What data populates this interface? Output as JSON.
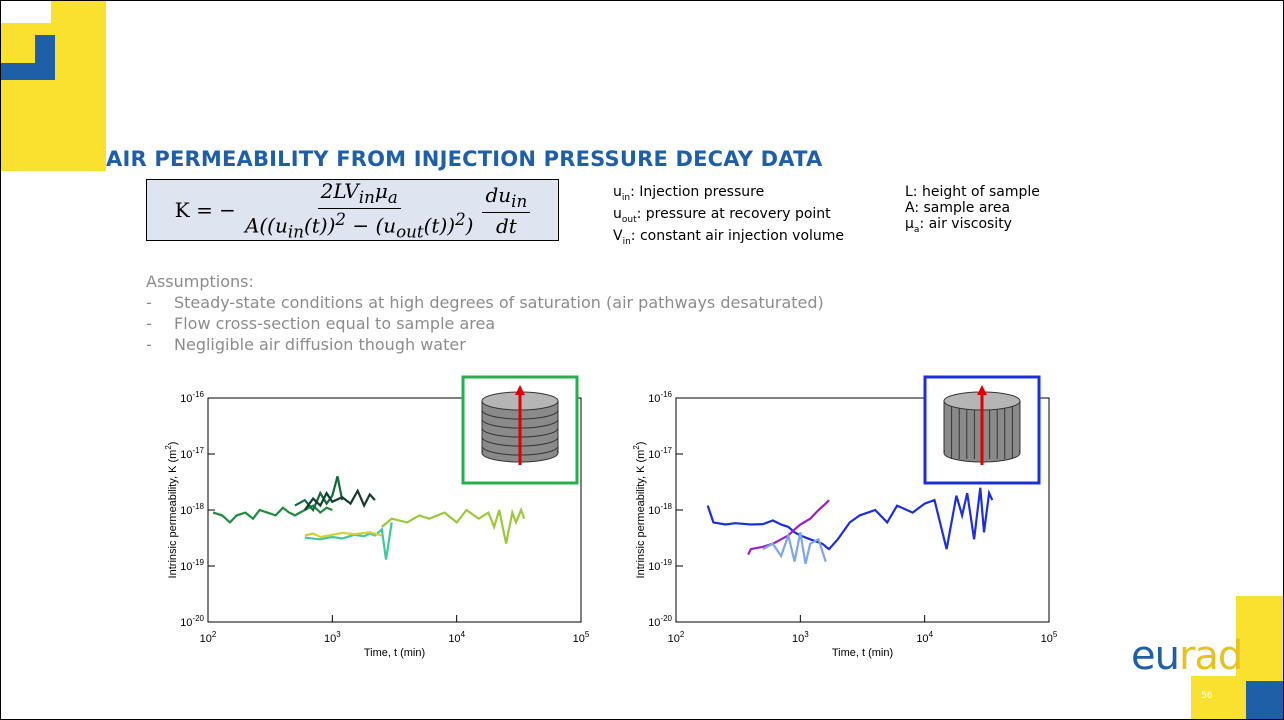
{
  "header": {
    "title": "AIR PERMEABILITY FROM INJECTION PRESSURE DECAY DATA"
  },
  "formula": {
    "lhs": "K = −",
    "numerator": [
      {
        "t": "2LV",
        "sub": "in"
      },
      {
        "t": "μ",
        "sub": "a"
      }
    ],
    "denominator": [
      {
        "t": "A((u",
        "sub": "in"
      },
      {
        "t": "(t))",
        "sup": "2"
      },
      {
        "t": " − (u",
        "sub": "out"
      },
      {
        "t": "(t))",
        "sup": "2"
      },
      {
        "t": ")"
      }
    ],
    "d_numerator": [
      {
        "t": "du",
        "sub": "in"
      }
    ],
    "d_denominator": [
      {
        "t": "dt"
      }
    ]
  },
  "definitions": [
    [
      [
        {
          "t": "u",
          "sub": "in"
        },
        {
          "t": ": Injection pressure"
        }
      ],
      [
        {
          "t": "u",
          "sub": "out"
        },
        {
          "t": ": pressure at recovery point"
        }
      ],
      [
        {
          "t": "V",
          "sub": "in"
        },
        {
          "t": ": constant air injection volume"
        }
      ]
    ],
    [
      [
        {
          "t": "L: height of sample"
        }
      ],
      [
        {
          "t": "A: sample area"
        }
      ],
      [
        {
          "t": "μ",
          "sub": "a"
        },
        {
          "t": ": air viscosity"
        }
      ]
    ]
  ],
  "assumptions": {
    "title": "Assumptions:",
    "bullet": "-",
    "items": [
      "Steady-state conditions at high degrees of saturation (air pathways desaturated)",
      "Flow cross-section equal to sample area",
      "Negligible air diffusion though water"
    ]
  },
  "chart_data": [
    {
      "type": "line",
      "xscale": "log",
      "yscale": "log",
      "xlabel": "Time, t (min)",
      "ylabel": {
        "text": "Intrinsic permeability, K (m",
        "sup": "2",
        "end": ")"
      },
      "inset": "horizontal",
      "inset_color": "#22b14c",
      "xlim": [
        100,
        100000
      ],
      "ylim": [
        1e-20,
        1e-16
      ],
      "xticks": [
        {
          "value": 100,
          "label": "10",
          "sup": "2"
        },
        {
          "value": 1000,
          "label": "10",
          "sup": "3"
        },
        {
          "value": 10000,
          "label": "10",
          "sup": "4"
        },
        {
          "value": 100000,
          "label": "10",
          "sup": "5"
        }
      ],
      "yticks": [
        {
          "value": 1e-20,
          "label": "10",
          "sup": "-20"
        },
        {
          "value": 1e-19,
          "label": "10",
          "sup": "-19"
        },
        {
          "value": 1e-18,
          "label": "10",
          "sup": "-18"
        },
        {
          "value": 1e-17,
          "label": "10",
          "sup": "-17"
        },
        {
          "value": 1e-16,
          "label": "10",
          "sup": "-16"
        }
      ],
      "series": [
        {
          "color": "#1e8c3c",
          "x": [
            110,
            130,
            150,
            170,
            200,
            230,
            260,
            300,
            350,
            400,
            450,
            500,
            600,
            700,
            800,
            900,
            1000
          ],
          "values": [
            9e-19,
            8e-19,
            6e-19,
            8e-19,
            9e-19,
            7e-19,
            1e-18,
            9e-19,
            8e-19,
            1.1e-18,
            9e-19,
            8e-19,
            1e-18,
            1.2e-18,
            9e-19,
            1.1e-18,
            1e-18
          ]
        },
        {
          "color": "#0f6b3a",
          "x": [
            500,
            600,
            700,
            800,
            900,
            1000,
            1100,
            1200
          ],
          "values": [
            1.2e-18,
            1.5e-18,
            1e-18,
            2e-18,
            1.3e-18,
            1.8e-18,
            4e-18,
            1.5e-18
          ]
        },
        {
          "color": "#123d2f",
          "x": [
            600,
            700,
            800,
            900,
            1000,
            1200,
            1400,
            1600,
            1800,
            2000,
            2200
          ],
          "values": [
            1e-18,
            1.6e-18,
            1.2e-18,
            2e-18,
            1.4e-18,
            1.7e-18,
            1.3e-18,
            2.2e-18,
            1.2e-18,
            1.9e-18,
            1.5e-18
          ]
        },
        {
          "color": "#40c8a0",
          "x": [
            600,
            800,
            1000,
            1200,
            1500,
            1800,
            2000,
            2200,
            2500,
            2700,
            3000
          ],
          "values": [
            3.2e-19,
            3e-19,
            3.3e-19,
            3.1e-19,
            3.6e-19,
            3.4e-19,
            3.8e-19,
            3.5e-19,
            4.5e-19,
            1.3e-19,
            6e-19
          ]
        },
        {
          "color": "#d6cf3a",
          "x": [
            600,
            700,
            800,
            1000,
            1200,
            1500,
            2000,
            2500
          ],
          "values": [
            3.5e-19,
            3.8e-19,
            3.3e-19,
            3.6e-19,
            3.9e-19,
            3.7e-19,
            4e-19,
            3.5e-19
          ]
        },
        {
          "color": "#9cc93c",
          "x": [
            2500,
            3000,
            4000,
            5000,
            6000,
            8000,
            10000,
            12000,
            15000,
            18000,
            20000,
            22000,
            25000,
            28000,
            30000,
            33000,
            35000
          ],
          "values": [
            5e-19,
            7e-19,
            6e-19,
            8e-19,
            7e-19,
            9e-19,
            6e-19,
            1e-18,
            7e-19,
            9e-19,
            5e-19,
            1e-18,
            2.5e-19,
            9e-19,
            6e-19,
            1e-18,
            7e-19
          ]
        }
      ]
    },
    {
      "type": "line",
      "xscale": "log",
      "yscale": "log",
      "xlabel": "Time, t (min)",
      "ylabel": {
        "text": "Intrinsic permeability, K (m",
        "sup": "2",
        "end": ")"
      },
      "inset": "vertical",
      "inset_color": "#1c2fd8",
      "xlim": [
        100,
        100000
      ],
      "ylim": [
        1e-20,
        1e-16
      ],
      "xticks": [
        {
          "value": 100,
          "label": "10",
          "sup": "2"
        },
        {
          "value": 1000,
          "label": "10",
          "sup": "3"
        },
        {
          "value": 10000,
          "label": "10",
          "sup": "4"
        },
        {
          "value": 100000,
          "label": "10",
          "sup": "5"
        }
      ],
      "yticks": [
        {
          "value": 1e-20,
          "label": "10",
          "sup": "-20"
        },
        {
          "value": 1e-19,
          "label": "10",
          "sup": "-19"
        },
        {
          "value": 1e-18,
          "label": "10",
          "sup": "-18"
        },
        {
          "value": 1e-17,
          "label": "10",
          "sup": "-17"
        },
        {
          "value": 1e-16,
          "label": "10",
          "sup": "-16"
        }
      ],
      "series": [
        {
          "color": "#1c2fd8",
          "x": [
            180,
            200,
            250,
            300,
            400,
            500,
            600,
            700,
            800,
            900,
            1000,
            1200,
            1500,
            1700,
            2000,
            2500,
            3000,
            4000,
            5000,
            6000,
            8000,
            10000,
            12000,
            15000,
            18000,
            20000,
            22000,
            25000,
            28000,
            30000,
            33000,
            35000
          ],
          "values": [
            1.2e-18,
            6e-19,
            5.5e-19,
            5.8e-19,
            5.5e-19,
            5.6e-19,
            6.5e-19,
            5.5e-19,
            5e-19,
            4e-19,
            3.5e-19,
            3e-19,
            2.5e-19,
            2e-19,
            3e-19,
            6e-19,
            8e-19,
            1e-18,
            6e-19,
            1.2e-18,
            9e-19,
            1.3e-18,
            1.5e-18,
            2e-19,
            1.8e-18,
            8e-19,
            2e-18,
            3e-19,
            2.5e-18,
            4e-19,
            2e-18,
            1.5e-18
          ]
        },
        {
          "color": "#9b1fc8",
          "x": [
            380,
            400,
            500,
            600,
            700,
            800,
            900,
            1000,
            1200,
            1400,
            1600,
            1700
          ],
          "values": [
            1.6e-19,
            2e-19,
            2.2e-19,
            2.5e-19,
            3e-19,
            3.5e-19,
            4.5e-19,
            5.5e-19,
            7e-19,
            1e-18,
            1.3e-18,
            1.5e-18
          ]
        },
        {
          "color": "#7fa6e8",
          "x": [
            500,
            600,
            700,
            800,
            900,
            1000,
            1100,
            1200,
            1400,
            1600
          ],
          "values": [
            2e-19,
            2.5e-19,
            1.5e-19,
            3.5e-19,
            1.2e-19,
            4e-19,
            1.1e-19,
            2.5e-19,
            3e-19,
            1.2e-19
          ]
        }
      ]
    }
  ],
  "footer": {
    "logo": [
      "eu",
      "rad"
    ],
    "page": "56"
  }
}
